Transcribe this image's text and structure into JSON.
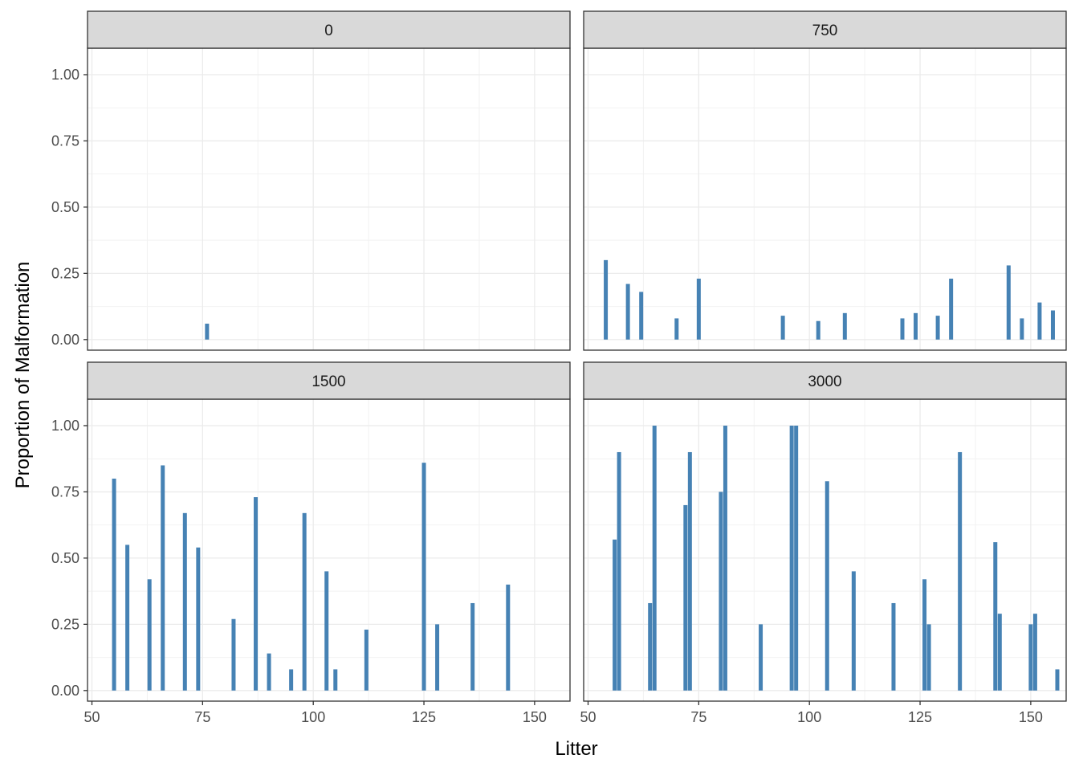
{
  "chart_data": {
    "type": "bar",
    "xlabel": "Litter",
    "ylabel": "Proportion of Malformation",
    "x_ticks": [
      50,
      75,
      100,
      125,
      150
    ],
    "y_ticks": [
      "0.00",
      "0.25",
      "0.50",
      "0.75",
      "1.00"
    ],
    "bar_color": "#4682B4",
    "xlim": [
      49,
      158
    ],
    "ylim": [
      -0.04,
      1.1
    ],
    "grid": true,
    "panels": [
      {
        "label": "0",
        "bars": [
          {
            "x": 76,
            "y": 0.06
          }
        ]
      },
      {
        "label": "750",
        "bars": [
          {
            "x": 54,
            "y": 0.3
          },
          {
            "x": 59,
            "y": 0.21
          },
          {
            "x": 62,
            "y": 0.18
          },
          {
            "x": 70,
            "y": 0.08
          },
          {
            "x": 75,
            "y": 0.23
          },
          {
            "x": 94,
            "y": 0.09
          },
          {
            "x": 102,
            "y": 0.07
          },
          {
            "x": 108,
            "y": 0.1
          },
          {
            "x": 121,
            "y": 0.08
          },
          {
            "x": 124,
            "y": 0.1
          },
          {
            "x": 129,
            "y": 0.09
          },
          {
            "x": 132,
            "y": 0.23
          },
          {
            "x": 145,
            "y": 0.28
          },
          {
            "x": 148,
            "y": 0.08
          },
          {
            "x": 152,
            "y": 0.14
          },
          {
            "x": 155,
            "y": 0.11
          }
        ]
      },
      {
        "label": "1500",
        "bars": [
          {
            "x": 55,
            "y": 0.8
          },
          {
            "x": 58,
            "y": 0.55
          },
          {
            "x": 63,
            "y": 0.42
          },
          {
            "x": 66,
            "y": 0.85
          },
          {
            "x": 71,
            "y": 0.67
          },
          {
            "x": 74,
            "y": 0.54
          },
          {
            "x": 82,
            "y": 0.27
          },
          {
            "x": 87,
            "y": 0.73
          },
          {
            "x": 90,
            "y": 0.14
          },
          {
            "x": 95,
            "y": 0.08
          },
          {
            "x": 98,
            "y": 0.67
          },
          {
            "x": 103,
            "y": 0.45
          },
          {
            "x": 105,
            "y": 0.08
          },
          {
            "x": 112,
            "y": 0.23
          },
          {
            "x": 125,
            "y": 0.86
          },
          {
            "x": 128,
            "y": 0.25
          },
          {
            "x": 136,
            "y": 0.33
          },
          {
            "x": 144,
            "y": 0.4
          }
        ]
      },
      {
        "label": "3000",
        "bars": [
          {
            "x": 56,
            "y": 0.57
          },
          {
            "x": 57,
            "y": 0.9
          },
          {
            "x": 64,
            "y": 0.33
          },
          {
            "x": 65,
            "y": 1.0
          },
          {
            "x": 72,
            "y": 0.7
          },
          {
            "x": 73,
            "y": 0.9
          },
          {
            "x": 80,
            "y": 0.75
          },
          {
            "x": 81,
            "y": 1.0
          },
          {
            "x": 89,
            "y": 0.25
          },
          {
            "x": 96,
            "y": 1.0
          },
          {
            "x": 97,
            "y": 1.0
          },
          {
            "x": 104,
            "y": 0.79
          },
          {
            "x": 110,
            "y": 0.45
          },
          {
            "x": 119,
            "y": 0.33
          },
          {
            "x": 126,
            "y": 0.42
          },
          {
            "x": 127,
            "y": 0.25
          },
          {
            "x": 134,
            "y": 0.9
          },
          {
            "x": 142,
            "y": 0.56
          },
          {
            "x": 143,
            "y": 0.29
          },
          {
            "x": 150,
            "y": 0.25
          },
          {
            "x": 151,
            "y": 0.29
          },
          {
            "x": 156,
            "y": 0.08
          }
        ]
      }
    ]
  }
}
